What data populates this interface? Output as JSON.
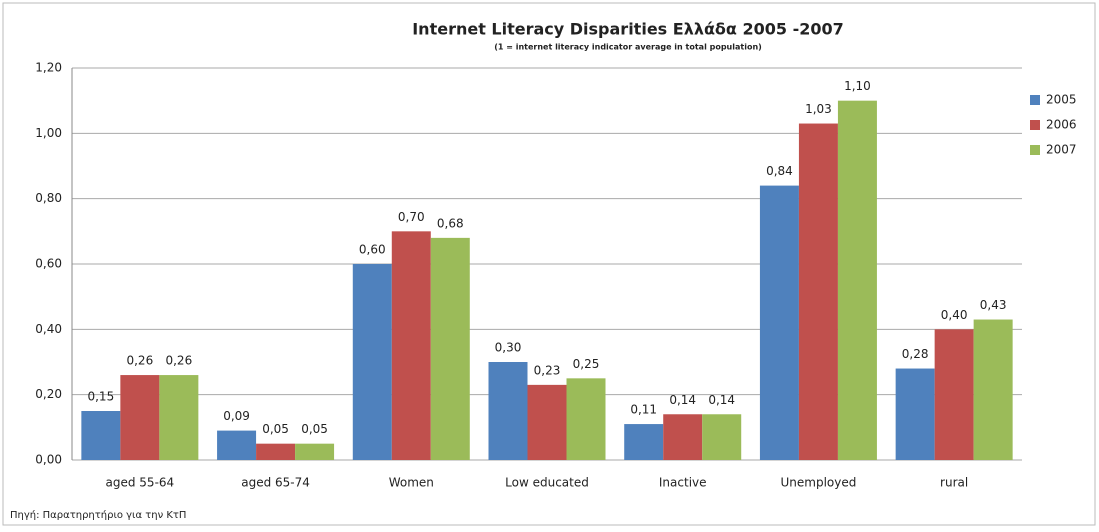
{
  "chart_data": {
    "type": "bar",
    "title": "Internet Literacy Disparities Ελλάδα 2005 -2007",
    "subtitle": "(1 = internet literacy indicator average in total population)",
    "source": "Πηγή: Παρατηρητήριο για την ΚτΠ",
    "categories": [
      "aged 55-64",
      "aged  65-74",
      "Women",
      "Low educated",
      "Inactive",
      "Unemployed",
      "rural"
    ],
    "series": [
      {
        "name": "2005",
        "color": "#4f81bd",
        "values": [
          0.15,
          0.09,
          0.6,
          0.3,
          0.11,
          0.84,
          0.28
        ],
        "value_labels": [
          "0,15",
          "0,09",
          "0,60",
          "0,30",
          "0,11",
          "0,84",
          "0,28"
        ]
      },
      {
        "name": "2006",
        "color": "#c0504d",
        "values": [
          0.26,
          0.05,
          0.7,
          0.23,
          0.14,
          1.03,
          0.4
        ],
        "value_labels": [
          "0,26",
          "0,05",
          "0,70",
          "0,23",
          "0,14",
          "1,03",
          "0,40"
        ]
      },
      {
        "name": "2007",
        "color": "#9bbb59",
        "values": [
          0.26,
          0.05,
          0.68,
          0.25,
          0.14,
          1.1,
          0.43
        ],
        "value_labels": [
          "0,26",
          "0,05",
          "0,68",
          "0,25",
          "0,14",
          "1,10",
          "0,43"
        ]
      }
    ],
    "ylim": [
      0,
      1.2
    ],
    "yticks": [
      {
        "value": 0,
        "label": "0,00"
      },
      {
        "value": 0.2,
        "label": "0,20"
      },
      {
        "value": 0.4,
        "label": "0,40"
      },
      {
        "value": 0.6,
        "label": "0,60"
      },
      {
        "value": 0.8,
        "label": "0,80"
      },
      {
        "value": 1.0,
        "label": "1,00"
      },
      {
        "value": 1.2,
        "label": "1,20"
      }
    ],
    "grid": true,
    "legend": "right"
  }
}
